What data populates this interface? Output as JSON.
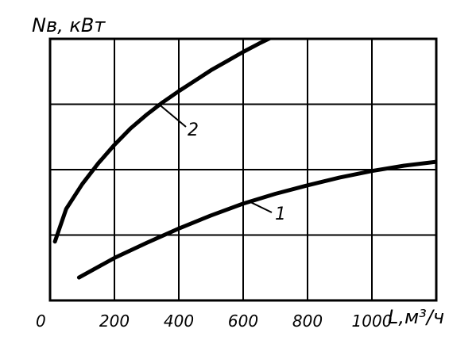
{
  "chart_data": {
    "type": "line",
    "xlabel": "L,м³/ч",
    "ylabel": "Nв, кВт",
    "xlim": [
      0,
      1200
    ],
    "ylim": [
      0,
      4
    ],
    "x_ticks": [
      "0",
      "200",
      "400",
      "600",
      "800",
      "1000"
    ],
    "x_tick_values": [
      0,
      200,
      400,
      600,
      800,
      1000
    ],
    "y_ticks_labeled": false,
    "grid": true,
    "series": [
      {
        "name": "1",
        "x": [
          90,
          200,
          300,
          400,
          500,
          600,
          700,
          800,
          900,
          1000,
          1100,
          1200
        ],
        "y": [
          0.35,
          0.65,
          0.88,
          1.1,
          1.3,
          1.48,
          1.63,
          1.76,
          1.88,
          1.98,
          2.06,
          2.12
        ]
      },
      {
        "name": "2",
        "x": [
          15,
          50,
          100,
          150,
          200,
          250,
          300,
          350,
          400,
          450,
          500,
          550,
          600,
          650,
          700
        ],
        "y": [
          0.9,
          1.4,
          1.78,
          2.1,
          2.38,
          2.63,
          2.84,
          3.03,
          3.2,
          3.36,
          3.52,
          3.66,
          3.8,
          3.93,
          4.05
        ]
      }
    ]
  }
}
